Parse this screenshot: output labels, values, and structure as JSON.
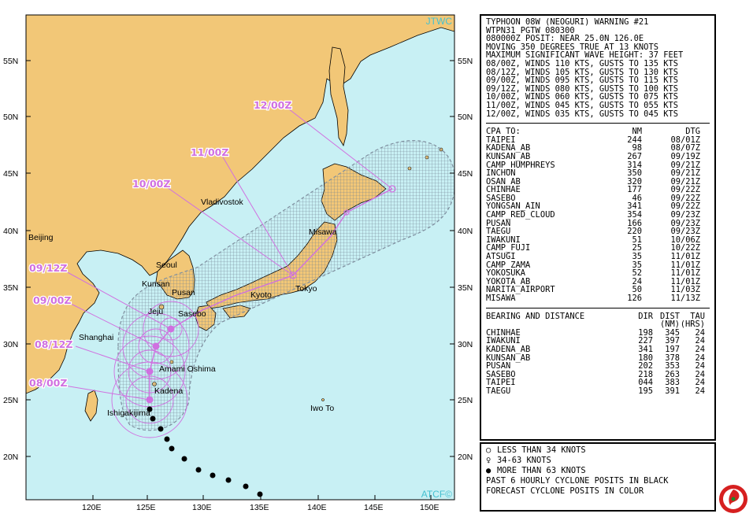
{
  "header": {
    "lines": [
      "TYPHOON 08W (NEOGURI) WARNING #21",
      "WTPN31 PGTW 080300",
      "080000Z POSIT: NEAR 25.0N 126.0E",
      "MOVING 350 DEGREES TRUE AT 13 KNOTS",
      "MAXIMUM SIGNIFICANT WAVE HEIGHT: 37 FEET",
      "08/00Z, WINDS 110 KTS, GUSTS TO 135 KTS",
      "08/12Z, WINDS 105 KTS, GUSTS TO 130 KTS",
      "09/00Z, WINDS 095 KTS, GUSTS TO 115 KTS",
      "09/12Z, WINDS 080 KTS, GUSTS TO 100 KTS",
      "10/00Z, WINDS 060 KTS, GUSTS TO 075 KTS",
      "11/00Z, WINDS 045 KTS, GUSTS TO 055 KTS",
      "12/00Z, WINDS 035 KTS, GUSTS TO 045 KTS"
    ]
  },
  "cpa": {
    "header": {
      "name": "CPA TO:",
      "nm": "NM",
      "dtg": "DTG"
    },
    "rows": [
      {
        "name": "TAIPEI",
        "nm": "244",
        "dtg": "08/01Z"
      },
      {
        "name": "KADENA_AB",
        "nm": "98",
        "dtg": "08/07Z"
      },
      {
        "name": "KUNSAN_AB",
        "nm": "267",
        "dtg": "09/19Z"
      },
      {
        "name": "CAMP_HUMPHREYS",
        "nm": "314",
        "dtg": "09/21Z"
      },
      {
        "name": "INCHON",
        "nm": "350",
        "dtg": "09/21Z"
      },
      {
        "name": "OSAN_AB",
        "nm": "320",
        "dtg": "09/21Z"
      },
      {
        "name": "CHINHAE",
        "nm": "177",
        "dtg": "09/22Z"
      },
      {
        "name": "SASEBO",
        "nm": "46",
        "dtg": "09/22Z"
      },
      {
        "name": "YONGSAN_AIN",
        "nm": "341",
        "dtg": "09/22Z"
      },
      {
        "name": "CAMP_RED_CLOUD",
        "nm": "354",
        "dtg": "09/23Z"
      },
      {
        "name": "PUSAN",
        "nm": "166",
        "dtg": "09/23Z"
      },
      {
        "name": "TAEGU",
        "nm": "220",
        "dtg": "09/23Z"
      },
      {
        "name": "IWAKUNI",
        "nm": "51",
        "dtg": "10/06Z"
      },
      {
        "name": "CAMP_FUJI",
        "nm": "25",
        "dtg": "10/22Z"
      },
      {
        "name": "ATSUGI",
        "nm": "35",
        "dtg": "11/01Z"
      },
      {
        "name": "CAMP_ZAMA",
        "nm": "35",
        "dtg": "11/01Z"
      },
      {
        "name": "YOKOSUKA",
        "nm": "52",
        "dtg": "11/01Z"
      },
      {
        "name": "YOKOTA_AB",
        "nm": "24",
        "dtg": "11/01Z"
      },
      {
        "name": "NARITA_AIRPORT",
        "nm": "50",
        "dtg": "11/03Z"
      },
      {
        "name": "MISAWA",
        "nm": "126",
        "dtg": "11/13Z"
      }
    ]
  },
  "bearing": {
    "header": {
      "name": "BEARING AND DISTANCE",
      "dir": "DIR",
      "dist": "DIST",
      "tau": "TAU",
      "dist_unit": "(NM)",
      "tau_unit": "(HRS)"
    },
    "rows": [
      {
        "name": "CHINHAE",
        "dir": "198",
        "dist": "345",
        "tau": "24"
      },
      {
        "name": "IWAKUNI",
        "dir": "227",
        "dist": "397",
        "tau": "24"
      },
      {
        "name": "KADENA_AB",
        "dir": "341",
        "dist": "197",
        "tau": "24"
      },
      {
        "name": "KUNSAN_AB",
        "dir": "180",
        "dist": "378",
        "tau": "24"
      },
      {
        "name": "PUSAN",
        "dir": "202",
        "dist": "353",
        "tau": "24"
      },
      {
        "name": "SASEBO",
        "dir": "218",
        "dist": "263",
        "tau": "24"
      },
      {
        "name": "TAIPEI",
        "dir": "044",
        "dist": "383",
        "tau": "24"
      },
      {
        "name": "TAEGU",
        "dir": "195",
        "dist": "391",
        "tau": "24"
      }
    ]
  },
  "legend": {
    "items": [
      {
        "symbol": "○",
        "text": "LESS THAN 34 KNOTS"
      },
      {
        "symbol": "♀",
        "text": "34-63 KNOTS"
      },
      {
        "symbol": "●",
        "text": "MORE THAN 63 KNOTS"
      }
    ],
    "note1": "PAST 6 HOURLY CYCLONE POSITS IN BLACK",
    "note2": "FORECAST CYCLONE POSITS IN COLOR"
  },
  "map": {
    "credit_top": "JTWC",
    "credit_bottom": "ATCF©",
    "lat_labels": [
      "55N",
      "50N",
      "45N",
      "40N",
      "35N",
      "30N",
      "25N",
      "20N"
    ],
    "lon_labels": [
      "120E",
      "125E",
      "130E",
      "135E",
      "140E",
      "145E",
      "150E"
    ],
    "cities": [
      "Beijing",
      "Vladivostok",
      "Seoul",
      "Kunsan",
      "Pusan",
      "Jeju",
      "Sasebo",
      "Kyoto",
      "Tokyo",
      "Misawa",
      "Shanghai",
      "Amami Oshima",
      "Kadena",
      "Ishigakijima",
      "Iwo To"
    ],
    "forecast_labels": [
      "12/00Z",
      "11/00Z",
      "10/00Z",
      "09/12Z",
      "09/00Z",
      "08/12Z",
      "08/00Z"
    ],
    "colors": {
      "ocean": "#c8f0f4",
      "land": "#f2c777",
      "forecast": "#d070e0",
      "swath": "#7f8f9f"
    }
  }
}
